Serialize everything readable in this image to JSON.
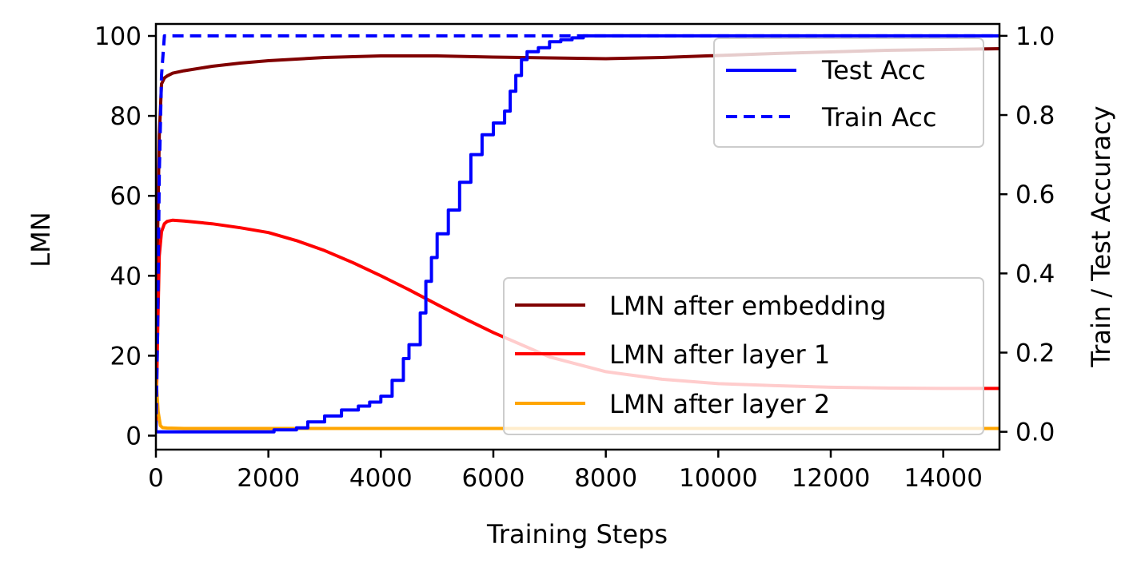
{
  "chart_data": {
    "type": "line",
    "xlabel": "Training Steps",
    "ylabel": "LMN",
    "y2label": "Train / Test Accuracy",
    "xlim": [
      0,
      15000
    ],
    "ylim": [
      -3.5,
      103
    ],
    "y2lim": [
      -0.045,
      1.03
    ],
    "grid": false,
    "x_ticks": [
      0,
      2000,
      4000,
      6000,
      8000,
      10000,
      12000,
      14000
    ],
    "y_ticks": [
      0,
      20,
      40,
      60,
      80,
      100
    ],
    "y2_ticks": [
      "0.0",
      "0.2",
      "0.4",
      "0.6",
      "0.8",
      "1.0"
    ],
    "colors": {
      "embedding": "#800000",
      "layer1": "#ff0000",
      "layer2": "#ffa500",
      "test": "#0000ff",
      "train": "#0000ff",
      "y2label": "#0000ff"
    },
    "legend_accuracy": {
      "position": "top-right",
      "entries": [
        "Test Acc",
        "Train Acc"
      ]
    },
    "legend_lmn": {
      "position": "lower-right",
      "entries": [
        "LMN after embedding",
        "LMN after layer 1",
        "LMN after layer 2"
      ]
    },
    "series": [
      {
        "name": "LMN after embedding",
        "axis": "left",
        "x": [
          0,
          30,
          60,
          100,
          150,
          200,
          300,
          500,
          1000,
          1500,
          2000,
          3000,
          4000,
          5000,
          6000,
          7000,
          8000,
          9000,
          10000,
          11000,
          12000,
          13000,
          14000,
          15000
        ],
        "y": [
          2,
          50,
          75,
          88,
          89.5,
          90,
          90.7,
          91.3,
          92.4,
          93.2,
          93.8,
          94.6,
          95,
          95,
          94.7,
          94.5,
          94.3,
          94.6,
          95.1,
          95.6,
          96,
          96.4,
          96.6,
          96.8
        ]
      },
      {
        "name": "LMN after layer 1",
        "axis": "left",
        "x": [
          0,
          30,
          60,
          100,
          150,
          200,
          300,
          500,
          1000,
          1500,
          2000,
          2500,
          3000,
          3500,
          4000,
          4500,
          5000,
          5500,
          6000,
          7000,
          8000,
          9000,
          10000,
          11000,
          12000,
          13000,
          14000,
          15000
        ],
        "y": [
          2,
          25,
          45,
          51,
          53,
          53.6,
          53.9,
          53.7,
          53,
          52,
          50.8,
          48.8,
          46.3,
          43.3,
          40,
          36.5,
          32.8,
          29.2,
          25.8,
          19.7,
          16,
          14.1,
          13,
          12.5,
          12.1,
          11.9,
          11.8,
          11.8
        ]
      },
      {
        "name": "LMN after layer 2",
        "axis": "left",
        "x": [
          0,
          40,
          80,
          120,
          200,
          500,
          2000,
          6000,
          10000,
          15000
        ],
        "y": [
          15,
          6,
          2.5,
          2,
          1.9,
          1.8,
          1.8,
          1.8,
          1.8,
          1.8
        ]
      },
      {
        "name": "Test Acc",
        "axis": "right",
        "x": [
          0,
          500,
          1000,
          1500,
          1900,
          2100,
          2500,
          2700,
          3000,
          3300,
          3600,
          3800,
          4000,
          4200,
          4400,
          4500,
          4700,
          4800,
          4900,
          5000,
          5200,
          5400,
          5600,
          5800,
          6000,
          6200,
          6300,
          6400,
          6500,
          6600,
          6800,
          7000,
          7200,
          7400,
          7600,
          8000,
          9000,
          10000,
          12000,
          15000
        ],
        "y": [
          0,
          0,
          0,
          0,
          0,
          0.005,
          0.01,
          0.025,
          0.04,
          0.055,
          0.065,
          0.075,
          0.09,
          0.13,
          0.185,
          0.22,
          0.3,
          0.38,
          0.44,
          0.5,
          0.56,
          0.63,
          0.7,
          0.75,
          0.78,
          0.81,
          0.86,
          0.9,
          0.94,
          0.96,
          0.97,
          0.985,
          0.99,
          0.995,
          1,
          1,
          1,
          1,
          1,
          1
        ]
      },
      {
        "name": "Train Acc",
        "axis": "right",
        "dashed": true,
        "x": [
          0,
          30,
          60,
          100,
          150,
          300,
          1000,
          5000,
          10000,
          15000
        ],
        "y": [
          0,
          0.25,
          0.65,
          0.9,
          1,
          1,
          1,
          1,
          1,
          1
        ]
      }
    ]
  }
}
